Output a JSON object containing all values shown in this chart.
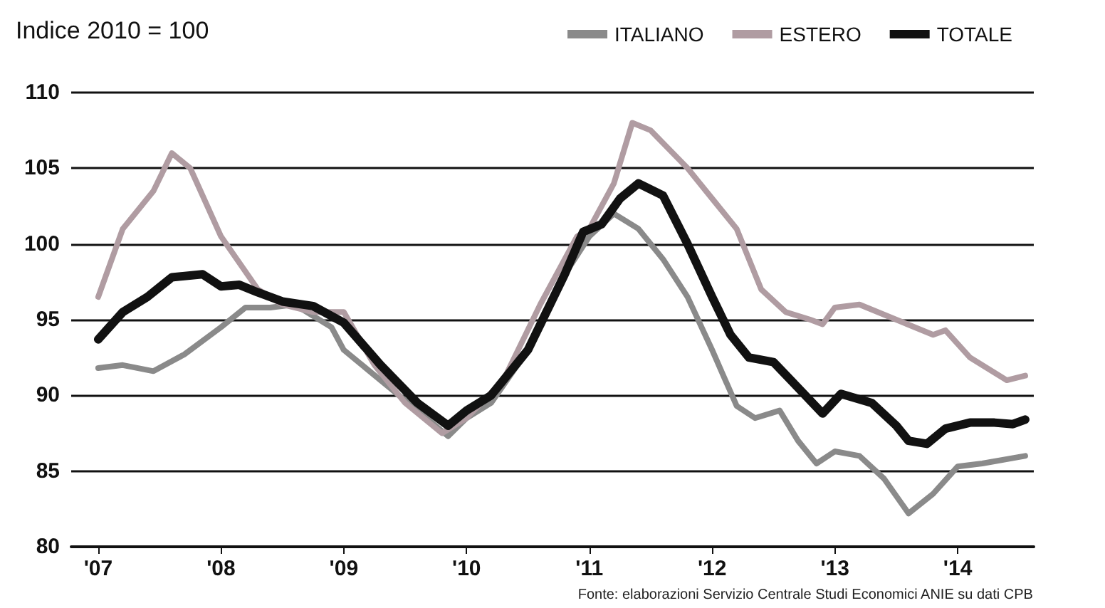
{
  "chart_data": {
    "type": "line",
    "title": "Indice 2010 = 100",
    "xlim": [
      2006.78,
      2014.62
    ],
    "xticks": [
      {
        "value": 2007,
        "label": "'07"
      },
      {
        "value": 2008,
        "label": "'08"
      },
      {
        "value": 2009,
        "label": "'09"
      },
      {
        "value": 2010,
        "label": "'10"
      },
      {
        "value": 2011,
        "label": "'11"
      },
      {
        "value": 2012,
        "label": "'12"
      },
      {
        "value": 2013,
        "label": "'13"
      },
      {
        "value": 2014,
        "label": "'14"
      }
    ],
    "ylim": [
      80,
      110
    ],
    "yticks": [
      80,
      85,
      90,
      95,
      100,
      105,
      110
    ],
    "grid": "y",
    "legend": "top right",
    "marker": "none",
    "line_style": "solid",
    "series": [
      {
        "name": "ITALIANO",
        "color": "#8a8a8a",
        "x": [
          2007,
          2007.2,
          2007.45,
          2007.7,
          2008,
          2008.2,
          2008.4,
          2008.6,
          2008.9,
          2009,
          2009.3,
          2009.6,
          2009.85,
          2010,
          2010.2,
          2010.5,
          2010.8,
          2011,
          2011.2,
          2011.4,
          2011.6,
          2011.8,
          2012,
          2012.2,
          2012.35,
          2012.55,
          2012.7,
          2012.85,
          2013,
          2013.2,
          2013.4,
          2013.6,
          2013.8,
          2014,
          2014.2,
          2014.55
        ],
        "values": [
          91.8,
          92,
          91.6,
          92.7,
          94.5,
          95.8,
          95.8,
          96,
          94.5,
          93,
          91,
          89,
          87.3,
          88.5,
          89.5,
          93,
          98,
          100.5,
          102,
          101,
          99,
          96.5,
          93,
          89.3,
          88.5,
          89,
          87,
          85.5,
          86.3,
          86,
          84.5,
          82.2,
          83.5,
          85.3,
          85.5,
          86
        ]
      },
      {
        "name": "ESTERO",
        "color": "#b09ca2",
        "x": [
          2007,
          2007.2,
          2007.45,
          2007.6,
          2007.75,
          2008,
          2008.3,
          2008.5,
          2008.75,
          2009,
          2009.25,
          2009.5,
          2009.8,
          2010,
          2010.3,
          2010.6,
          2010.9,
          2011,
          2011.2,
          2011.35,
          2011.5,
          2011.8,
          2012,
          2012.2,
          2012.4,
          2012.6,
          2012.8,
          2012.9,
          2013,
          2013.2,
          2013.5,
          2013.8,
          2013.9,
          2014.1,
          2014.4,
          2014.55
        ],
        "values": [
          96.5,
          101,
          103.5,
          106,
          105,
          100.5,
          97,
          96,
          95.5,
          95.5,
          92,
          89.5,
          87.5,
          88.5,
          91,
          96,
          100.5,
          101,
          104,
          108,
          107.5,
          105,
          103,
          101,
          97,
          95.5,
          95,
          94.7,
          95.8,
          96,
          95,
          94,
          94.3,
          92.5,
          91,
          91.3
        ]
      },
      {
        "name": "TOTALE",
        "color": "#111111",
        "x": [
          2007,
          2007.2,
          2007.4,
          2007.6,
          2007.85,
          2008,
          2008.15,
          2008.3,
          2008.5,
          2008.75,
          2009,
          2009.3,
          2009.6,
          2009.85,
          2010,
          2010.2,
          2010.5,
          2010.8,
          2010.95,
          2011.1,
          2011.25,
          2011.4,
          2011.6,
          2011.8,
          2012,
          2012.15,
          2012.3,
          2012.5,
          2012.7,
          2012.9,
          2013.05,
          2013.3,
          2013.5,
          2013.6,
          2013.75,
          2013.9,
          2014.1,
          2014.3,
          2014.45,
          2014.55
        ],
        "values": [
          93.7,
          95.5,
          96.5,
          97.8,
          98,
          97.2,
          97.3,
          96.8,
          96.2,
          95.9,
          94.8,
          92,
          89.5,
          88,
          89,
          90,
          93,
          98,
          100.8,
          101.3,
          103,
          104,
          103.2,
          100,
          96.5,
          94,
          92.5,
          92.2,
          90.5,
          88.8,
          90.1,
          89.5,
          88,
          87,
          86.8,
          87.8,
          88.2,
          88.2,
          88.1,
          88.4
        ]
      }
    ],
    "annotations": [
      "Fonte: elaborazioni Servizio Centrale Studi Economici ANIE su dati CPB"
    ]
  }
}
